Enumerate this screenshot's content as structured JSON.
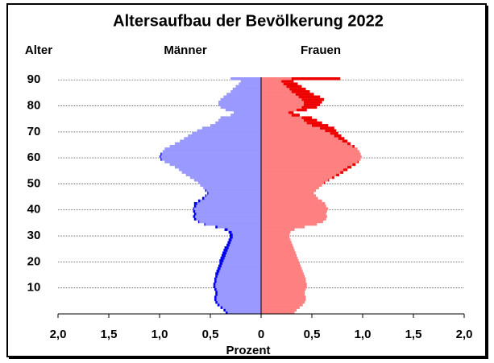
{
  "chart_data": {
    "type": "pyramid",
    "title": "Altersaufbau der Bevölkerung 2022",
    "y_label": "Alter",
    "x_label": "Prozent",
    "y": [
      0,
      1,
      2,
      3,
      4,
      5,
      6,
      7,
      8,
      9,
      10,
      11,
      12,
      13,
      14,
      15,
      16,
      17,
      18,
      19,
      20,
      21,
      22,
      23,
      24,
      25,
      26,
      27,
      28,
      29,
      30,
      31,
      32,
      33,
      34,
      35,
      36,
      37,
      38,
      39,
      40,
      41,
      42,
      43,
      44,
      45,
      46,
      47,
      48,
      49,
      50,
      51,
      52,
      53,
      54,
      55,
      56,
      57,
      58,
      59,
      60,
      61,
      62,
      63,
      64,
      65,
      66,
      67,
      68,
      69,
      70,
      71,
      72,
      73,
      74,
      75,
      76,
      77,
      78,
      79,
      80,
      81,
      82,
      83,
      84,
      85,
      86,
      87,
      88,
      89,
      90
    ],
    "series": [
      {
        "name": "Männer",
        "side": "left",
        "color": "#9999ff",
        "excess_color": "#0000ee",
        "values": [
          0.35,
          0.37,
          0.4,
          0.43,
          0.45,
          0.46,
          0.46,
          0.45,
          0.45,
          0.46,
          0.47,
          0.47,
          0.46,
          0.46,
          0.45,
          0.45,
          0.44,
          0.43,
          0.42,
          0.41,
          0.41,
          0.4,
          0.39,
          0.38,
          0.37,
          0.36,
          0.34,
          0.33,
          0.32,
          0.31,
          0.31,
          0.32,
          0.36,
          0.45,
          0.56,
          0.62,
          0.66,
          0.67,
          0.66,
          0.67,
          0.67,
          0.66,
          0.66,
          0.62,
          0.58,
          0.55,
          0.53,
          0.55,
          0.57,
          0.6,
          0.62,
          0.66,
          0.7,
          0.74,
          0.78,
          0.81,
          0.85,
          0.9,
          0.95,
          0.99,
          1.0,
          0.99,
          0.97,
          0.95,
          0.9,
          0.85,
          0.8,
          0.76,
          0.72,
          0.68,
          0.63,
          0.58,
          0.5,
          0.45,
          0.42,
          0.4,
          0.3,
          0.27,
          0.35,
          0.4,
          0.42,
          0.42,
          0.4,
          0.37,
          0.34,
          0.3,
          0.28,
          0.25,
          0.22,
          0.2,
          0.3
        ]
      },
      {
        "name": "Frauen",
        "side": "right",
        "color": "#ff8080",
        "excess_color": "#ee0000",
        "values": [
          0.33,
          0.35,
          0.38,
          0.41,
          0.43,
          0.44,
          0.44,
          0.43,
          0.43,
          0.44,
          0.45,
          0.45,
          0.44,
          0.44,
          0.43,
          0.42,
          0.41,
          0.4,
          0.39,
          0.38,
          0.37,
          0.36,
          0.35,
          0.34,
          0.33,
          0.32,
          0.31,
          0.3,
          0.29,
          0.28,
          0.28,
          0.29,
          0.33,
          0.43,
          0.55,
          0.61,
          0.64,
          0.65,
          0.64,
          0.65,
          0.66,
          0.64,
          0.63,
          0.6,
          0.56,
          0.54,
          0.52,
          0.54,
          0.57,
          0.6,
          0.63,
          0.67,
          0.72,
          0.77,
          0.81,
          0.85,
          0.89,
          0.93,
          0.96,
          0.98,
          0.99,
          0.98,
          0.97,
          0.95,
          0.92,
          0.88,
          0.85,
          0.82,
          0.79,
          0.76,
          0.74,
          0.72,
          0.66,
          0.6,
          0.55,
          0.5,
          0.38,
          0.32,
          0.45,
          0.55,
          0.58,
          0.6,
          0.62,
          0.58,
          0.52,
          0.48,
          0.44,
          0.4,
          0.36,
          0.32,
          0.78
        ]
      }
    ],
    "xlim": [
      0,
      2
    ],
    "xticks": [
      0,
      {
        "value": 0.5,
        "label": "0,5"
      },
      {
        "value": 1,
        "label": "1,0"
      },
      {
        "value": 1.5,
        "label": "1,5"
      },
      {
        "value": 2,
        "label": "2,0"
      }
    ],
    "ylim": [
      0,
      91
    ],
    "yticks": [
      10,
      20,
      30,
      40,
      50,
      60,
      70,
      80,
      90
    ],
    "grid": true
  }
}
